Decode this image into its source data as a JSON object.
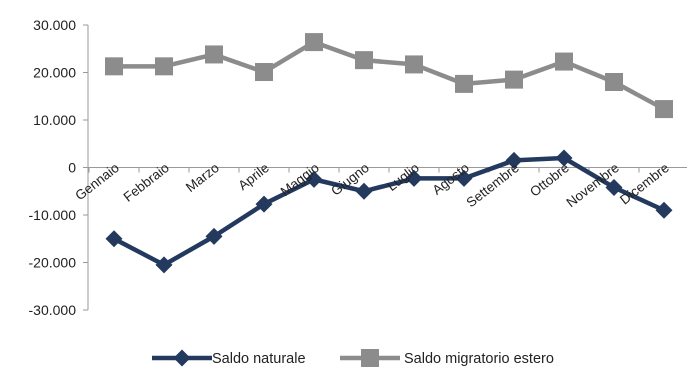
{
  "chart_data": {
    "type": "line",
    "categories": [
      "Gennaio",
      "Febbraio",
      "Marzo",
      "Aprile",
      "Maggio",
      "Giugno",
      "Luglio",
      "Agosto",
      "Settembre",
      "Ottobre",
      "Novembre",
      "Dicembre"
    ],
    "series": [
      {
        "name": "Saldo naturale",
        "color": "#233a5e",
        "marker": "diamond",
        "values": [
          -15000,
          -20500,
          -14500,
          -7700,
          -2500,
          -5000,
          -2300,
          -2300,
          1500,
          2000,
          -4200,
          -9000
        ]
      },
      {
        "name": "Saldo migratorio estero",
        "color": "#8c8c8c",
        "marker": "square",
        "values": [
          21300,
          21300,
          23800,
          20100,
          26400,
          22600,
          21700,
          17600,
          18500,
          22300,
          18000,
          12300
        ]
      }
    ],
    "ylim": [
      -30000,
      30000
    ],
    "yticks": [
      -30000,
      -20000,
      -10000,
      0,
      10000,
      20000,
      30000
    ],
    "ytick_labels": [
      "-30.000",
      "-20.000",
      "-10.000",
      "0",
      "10.000",
      "20.000",
      "30.000"
    ],
    "grid": false,
    "legend_position": "bottom"
  }
}
